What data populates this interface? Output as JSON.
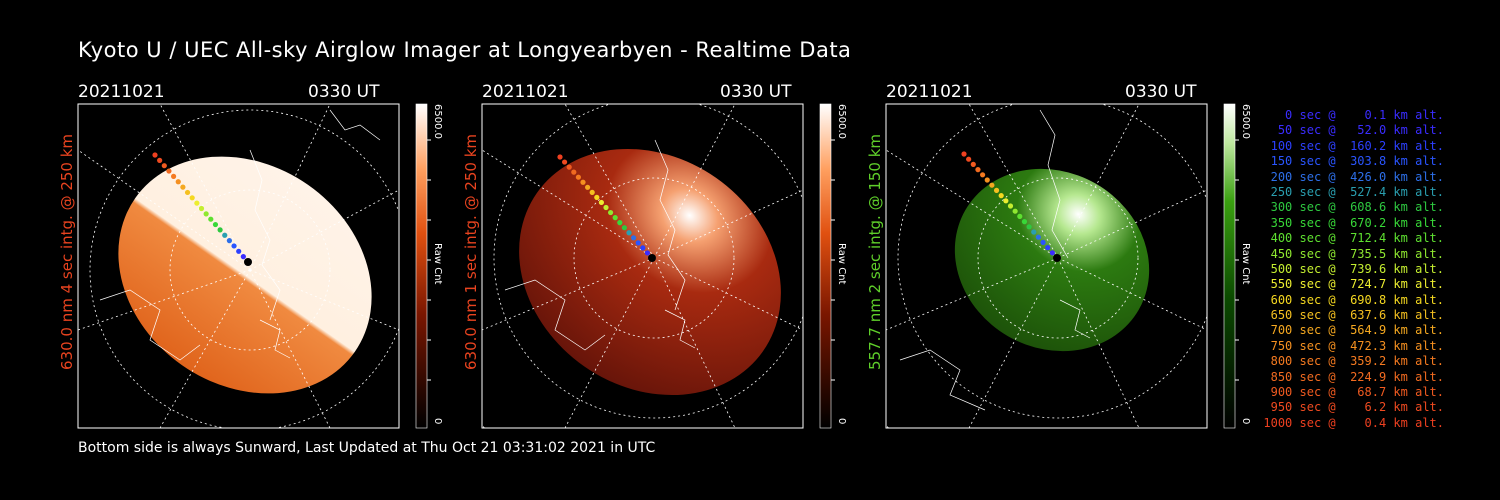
{
  "title": "Kyoto U / UEC All-sky Airglow Imager at Longyearbyen - Realtime Data",
  "footer": "Bottom side is always Sunward, Last Updated at Thu Oct 21 03:31:02 2021 in UTC",
  "panels": [
    {
      "date": "20211021",
      "time": "0330 UT",
      "ylabel": "630.0 nm 4 sec intg. @ 250 km",
      "ylabel_color": "#e8431f",
      "cbar_max": "6500.0",
      "cbar_min": "0",
      "cbar_label": "Raw Cnt",
      "colormap": "orange"
    },
    {
      "date": "20211021",
      "time": "0330 UT",
      "ylabel": "630.0 nm 1 sec intg. @ 250 km",
      "ylabel_color": "#e8431f",
      "cbar_max": "6500.0",
      "cbar_min": "0",
      "cbar_label": "Raw Cnt",
      "colormap": "red"
    },
    {
      "date": "20211021",
      "time": "0330 UT",
      "ylabel": "557.7 nm 2 sec intg. @ 150 km",
      "ylabel_color": "#5fcf2a",
      "cbar_max": "6500.0",
      "cbar_min": "0",
      "cbar_label": "Raw Cnt",
      "colormap": "green"
    }
  ],
  "legend": [
    {
      "text": "   0 sec @    0.1 km alt.",
      "color": "#3a2cff"
    },
    {
      "text": "  50 sec @   52.0 km alt.",
      "color": "#3a2cff"
    },
    {
      "text": " 100 sec @  160.2 km alt.",
      "color": "#2c40ff"
    },
    {
      "text": " 150 sec @  303.8 km alt.",
      "color": "#2a55ff"
    },
    {
      "text": " 200 sec @  426.0 km alt.",
      "color": "#2d6fe8"
    },
    {
      "text": " 250 sec @  527.4 km alt.",
      "color": "#2a9fb0"
    },
    {
      "text": " 300 sec @  608.6 km alt.",
      "color": "#2ec840"
    },
    {
      "text": " 350 sec @  670.2 km alt.",
      "color": "#38d838"
    },
    {
      "text": " 400 sec @  712.4 km alt.",
      "color": "#5ee030"
    },
    {
      "text": " 450 sec @  735.5 km alt.",
      "color": "#8fe830"
    },
    {
      "text": " 500 sec @  739.6 km alt.",
      "color": "#c4ee30"
    },
    {
      "text": " 550 sec @  724.7 km alt.",
      "color": "#ecee30"
    },
    {
      "text": " 600 sec @  690.8 km alt.",
      "color": "#f5d820"
    },
    {
      "text": " 650 sec @  637.6 km alt.",
      "color": "#f5c020"
    },
    {
      "text": " 700 sec @  564.9 km alt.",
      "color": "#f5a820"
    },
    {
      "text": " 750 sec @  472.3 km alt.",
      "color": "#f59020"
    },
    {
      "text": " 800 sec @  359.2 km alt.",
      "color": "#f57a20"
    },
    {
      "text": " 850 sec @  224.9 km alt.",
      "color": "#f06a20"
    },
    {
      "text": " 900 sec @   68.7 km alt.",
      "color": "#f05a20"
    },
    {
      "text": " 950 sec @    6.2 km alt.",
      "color": "#ee4a20"
    },
    {
      "text": "1000 sec @    0.4 km alt.",
      "color": "#ee4020"
    }
  ]
}
